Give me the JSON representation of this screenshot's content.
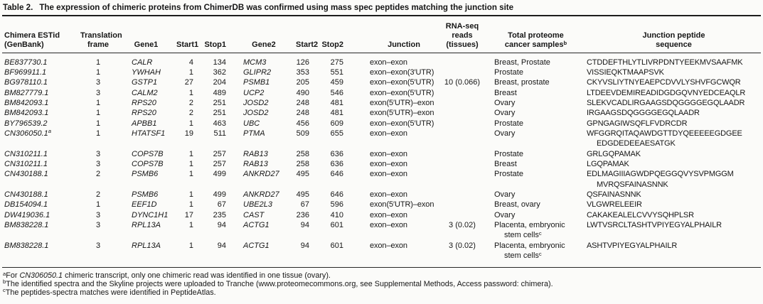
{
  "colors": {
    "text": "#161616",
    "rule": "#272727",
    "background": "#fbfbf9"
  },
  "table": {
    "label": "Table 2.",
    "caption": "The expression of chimeric proteins from ChimerDB was confirmed using mass spec peptides matching the junction site",
    "columns": [
      {
        "key": "estid",
        "lines": [
          "Chimera ESTid",
          "(GenBank)"
        ]
      },
      {
        "key": "frame",
        "lines": [
          "Translation",
          "frame"
        ]
      },
      {
        "key": "gene1",
        "lines": [
          "Gene1"
        ]
      },
      {
        "key": "start1",
        "lines": [
          "Start1"
        ]
      },
      {
        "key": "stop1",
        "lines": [
          "Stop1"
        ]
      },
      {
        "key": "gene2",
        "lines": [
          "Gene2"
        ]
      },
      {
        "key": "start2",
        "lines": [
          "Start2"
        ]
      },
      {
        "key": "stop2",
        "lines": [
          "Stop2"
        ]
      },
      {
        "key": "junction",
        "lines": [
          "Junction"
        ]
      },
      {
        "key": "rnaseq",
        "lines": [
          "RNA-seq",
          "reads",
          "(tissues)"
        ]
      },
      {
        "key": "samples",
        "lines": [
          "Total proteome",
          [
            {
              "t": "cancer samples"
            },
            {
              "sup": "b"
            }
          ]
        ]
      },
      {
        "key": "peptide",
        "lines": [
          "Junction peptide",
          "sequence"
        ]
      }
    ],
    "rows": [
      {
        "estid": "BE837730.1",
        "frame": "1",
        "gene1": "CALR",
        "start1": "4",
        "stop1": "134",
        "gene2": "MCM3",
        "start2": "126",
        "stop2": "275",
        "junction": "exon–exon",
        "rnaseq": "",
        "samples": "Breast, Prostate",
        "peptide": "CTDDEFTHLYTLIVRPDNTYEEKMVSAAFMK"
      },
      {
        "estid": "BF969911.1",
        "frame": "1",
        "gene1": "YWHAH",
        "start1": "1",
        "stop1": "362",
        "gene2": "GLIPR2",
        "start2": "353",
        "stop2": "551",
        "junction": "exon–exon(3′UTR)",
        "rnaseq": "",
        "samples": "Prostate",
        "peptide": "VISSIEQKTMAAPSVK"
      },
      {
        "estid": "BG978110.1",
        "frame": "3",
        "gene1": "GSTP1",
        "start1": "27",
        "stop1": "204",
        "gene2": "PSMB1",
        "start2": "205",
        "stop2": "459",
        "junction": "exon–exon(5′UTR)",
        "rnaseq": "10 (0.066)",
        "samples": "Breast, prostate",
        "peptide": "CKYVSLIYTNYEAEPCDVVLYSHVFGCWQR"
      },
      {
        "estid": "BM827779.1",
        "frame": "3",
        "gene1": "CALM2",
        "start1": "1",
        "stop1": "489",
        "gene2": "UCP2",
        "start2": "490",
        "stop2": "546",
        "junction": "exon–exon(5′UTR)",
        "rnaseq": "",
        "samples": "Breast",
        "peptide": "LTDEEVDEMIREADIDGDGQVNYEDCEAQLR"
      },
      {
        "estid": "BM842093.1",
        "frame": "1",
        "gene1": "RPS20",
        "start1": "2",
        "stop1": "251",
        "gene2": "JOSD2",
        "start2": "248",
        "stop2": "481",
        "junction": "exon(5′UTR)–exon",
        "rnaseq": "",
        "samples": "Ovary",
        "peptide": "SLEKVCADLIRGAAGSDQGGGGEGQLAADR"
      },
      {
        "estid": "BM842093.1",
        "frame": "1",
        "gene1": "RPS20",
        "start1": "2",
        "stop1": "251",
        "gene2": "JOSD2",
        "start2": "248",
        "stop2": "481",
        "junction": "exon(5′UTR)–exon",
        "rnaseq": "",
        "samples": "Ovary",
        "peptide": "IRGAAGSDQGGGGEGQLAADR"
      },
      {
        "estid": "BY796539.2",
        "frame": "1",
        "gene1": "APBB1",
        "start1": "1",
        "stop1": "463",
        "gene2": "UBC",
        "start2": "456",
        "stop2": "609",
        "junction": "exon–exon(5′UTR)",
        "rnaseq": "",
        "samples": "Prostate",
        "peptide": "GPNGAGIWSQFLFVDRCDR"
      },
      {
        "estid": [
          {
            "t": "CN306050.1"
          },
          {
            "sup": "a"
          }
        ],
        "frame": "1",
        "gene1": "HTATSF1",
        "start1": "19",
        "stop1": "511",
        "gene2": "PTMA",
        "start2": "509",
        "stop2": "655",
        "junction": "exon–exon",
        "rnaseq": "",
        "samples": "Ovary",
        "peptide": [
          {
            "t": "WFGGRQITAQAWDGTTDYQEEEEEGDGEE"
          },
          {
            "br": true
          },
          {
            "t": "EDGDEDEEAESATGK",
            "ind": true
          }
        ]
      },
      {
        "estid": "CN310211.1",
        "frame": "3",
        "gene1": "COPS7B",
        "start1": "1",
        "stop1": "257",
        "gene2": "RAB13",
        "start2": "258",
        "stop2": "636",
        "junction": "exon–exon",
        "rnaseq": "",
        "samples": "Prostate",
        "peptide": "GRLGQPAMAK"
      },
      {
        "estid": "CN310211.1",
        "frame": "3",
        "gene1": "COPS7B",
        "start1": "1",
        "stop1": "257",
        "gene2": "RAB13",
        "start2": "258",
        "stop2": "636",
        "junction": "exon–exon",
        "rnaseq": "",
        "samples": "Breast",
        "peptide": "LGQPAMAK"
      },
      {
        "estid": "CN430188.1",
        "frame": "2",
        "gene1": "PSMB6",
        "start1": "1",
        "stop1": "499",
        "gene2": "ANKRD27",
        "start2": "495",
        "stop2": "646",
        "junction": "exon–exon",
        "rnaseq": "",
        "samples": "Prostate",
        "peptide": [
          {
            "t": "EDLMAGIIIAGWDPQEGGQVYSVPMGGM"
          },
          {
            "br": true
          },
          {
            "t": "MVRQSFAINASNNK",
            "ind": true
          }
        ]
      },
      {
        "estid": "CN430188.1",
        "frame": "2",
        "gene1": "PSMB6",
        "start1": "1",
        "stop1": "499",
        "gene2": "ANKRD27",
        "start2": "495",
        "stop2": "646",
        "junction": "exon–exon",
        "rnaseq": "",
        "samples": "Ovary",
        "peptide": "QSFAINASNNK"
      },
      {
        "estid": "DB154094.1",
        "frame": "1",
        "gene1": "EEF1D",
        "start1": "1",
        "stop1": "67",
        "gene2": "UBE2L3",
        "start2": "67",
        "stop2": "596",
        "junction": "exon(5′UTR)–exon",
        "rnaseq": "",
        "samples": "Breast, ovary",
        "peptide": "VLGWRELEEIR"
      },
      {
        "estid": "DW419036.1",
        "frame": "3",
        "gene1": "DYNC1H1",
        "start1": "17",
        "stop1": "235",
        "gene2": "CAST",
        "start2": "236",
        "stop2": "410",
        "junction": "exon–exon",
        "rnaseq": "",
        "samples": "Ovary",
        "peptide": "CAKAKEALELCVVYSQHPLSR"
      },
      {
        "estid": "BM838228.1",
        "frame": "3",
        "gene1": "RPL13A",
        "start1": "1",
        "stop1": "94",
        "gene2": "ACTG1",
        "start2": "94",
        "stop2": "601",
        "junction": "exon–exon",
        "rnaseq": "3 (0.02)",
        "samples": [
          {
            "t": "Placenta, embryonic"
          },
          {
            "br": true
          },
          {
            "t": "stem cells",
            "ind": true
          },
          {
            "sup": "c"
          }
        ],
        "peptide": "LWTVSRCLTASHTVPIYEGYALPHAILR"
      },
      {
        "estid": "BM838228.1",
        "frame": "3",
        "gene1": "RPL13A",
        "start1": "1",
        "stop1": "94",
        "gene2": "ACTG1",
        "start2": "94",
        "stop2": "601",
        "junction": "exon–exon",
        "rnaseq": "3 (0.02)",
        "samples": [
          {
            "t": "Placenta, embryonic"
          },
          {
            "br": true
          },
          {
            "t": "stem cells",
            "ind": true
          },
          {
            "sup": "c"
          }
        ],
        "peptide": "ASHTVPIYEGYALPHAILR"
      }
    ],
    "footnotes": [
      [
        {
          "sup": "a"
        },
        {
          "t": "For "
        },
        {
          "t": "CN306050.1",
          "i": true
        },
        {
          "t": " chimeric transcript, only one chimeric read was identified in one tissue (ovary)."
        }
      ],
      [
        {
          "sup": "b"
        },
        {
          "t": "The identified spectra and the Skyline projects were uploaded to Tranche (www.proteomecommons.org, see Supplemental Methods, Access password: chimera)."
        }
      ],
      [
        {
          "sup": "c"
        },
        {
          "t": "The peptides-spectra matches were identified in PeptideAtlas."
        }
      ]
    ]
  }
}
